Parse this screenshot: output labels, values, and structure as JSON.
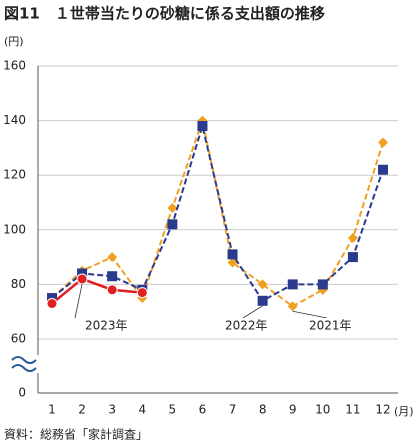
{
  "chart_data": {
    "type": "line",
    "title": "図11　１世帯当たりの砂糖に係る支出額の推移",
    "y_unit": "(円)",
    "x_unit": "(月)",
    "source": "資料：総務省「家計調査」",
    "categories": [
      "1",
      "2",
      "3",
      "4",
      "5",
      "6",
      "7",
      "8",
      "9",
      "10",
      "11",
      "12"
    ],
    "series": [
      {
        "name": "2021年",
        "color": "#f0a020",
        "style": "dashed",
        "marker": "diamond",
        "values": [
          75,
          85,
          90,
          75,
          108,
          140,
          88,
          80,
          72,
          78,
          97,
          132
        ]
      },
      {
        "name": "2022年",
        "color": "#2a3a8c",
        "style": "dashed",
        "marker": "square",
        "values": [
          75,
          84,
          83,
          78,
          102,
          138,
          91,
          74,
          80,
          80,
          90,
          122
        ]
      },
      {
        "name": "2023年",
        "color": "#e02020",
        "style": "solid",
        "marker": "circle",
        "values": [
          73,
          82,
          78,
          77,
          null,
          null,
          null,
          null,
          null,
          null,
          null,
          null
        ]
      }
    ],
    "ylim": [
      0,
      160
    ],
    "y_break": [
      0,
      60
    ],
    "yticks": [
      0,
      60,
      80,
      100,
      120,
      140,
      160
    ],
    "grid": true
  }
}
